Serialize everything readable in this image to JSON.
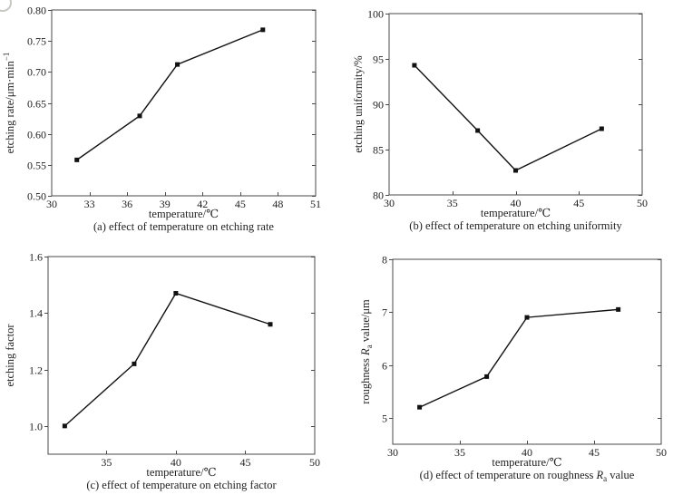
{
  "page": {
    "background": "#ffffff",
    "text_color": "#1f1f1f",
    "axis_color": "#4a4a4a",
    "line_color": "#111111",
    "marker_color": "#111111"
  },
  "chart_data": [
    {
      "id": "a",
      "type": "line",
      "caption": [
        {
          "t": "(a) effect of temperature on etching rate"
        }
      ],
      "xlabel": [
        {
          "t": "temperature/℃"
        }
      ],
      "ylabel": [
        {
          "t": "etching rate/μm·min"
        },
        {
          "t": "−1",
          "sup": true
        }
      ],
      "x": [
        32,
        37,
        40,
        46.8
      ],
      "y": [
        0.558,
        0.629,
        0.712,
        0.768
      ],
      "xlim": [
        30,
        51
      ],
      "ylim": [
        0.5,
        0.8
      ],
      "xticks": {
        "values": [
          30,
          33,
          36,
          39,
          42,
          45,
          48,
          51
        ],
        "labels": [
          "30",
          "33",
          "36",
          "39",
          "42",
          "45",
          "48",
          "51"
        ]
      },
      "yticks": {
        "values": [
          0.5,
          0.55,
          0.6,
          0.65,
          0.7,
          0.75,
          0.8
        ],
        "labels": [
          "0.50",
          "0.55",
          "0.60",
          "0.65",
          "0.70",
          "0.75",
          "0.80"
        ]
      },
      "marker": "square",
      "grid": false,
      "legend": null
    },
    {
      "id": "b",
      "type": "line",
      "caption": [
        {
          "t": "(b) effect of temperature on etching uniformity"
        }
      ],
      "xlabel": [
        {
          "t": "temperature/℃"
        }
      ],
      "ylabel": [
        {
          "t": "etching uniformity/%"
        }
      ],
      "x": [
        32,
        37,
        40,
        46.8
      ],
      "y": [
        94.3,
        87.1,
        82.7,
        87.3
      ],
      "xlim": [
        30,
        50
      ],
      "ylim": [
        80,
        100
      ],
      "xticks": {
        "values": [
          30,
          35,
          40,
          45,
          50
        ],
        "labels": [
          "30",
          "35",
          "40",
          "45",
          "50"
        ]
      },
      "yticks": {
        "values": [
          80,
          85,
          90,
          95,
          100
        ],
        "labels": [
          "80",
          "85",
          "90",
          "95",
          "100"
        ]
      },
      "marker": "square",
      "grid": false,
      "legend": null
    },
    {
      "id": "c",
      "type": "line",
      "caption": [
        {
          "t": "(c) effect of temperature on etching factor"
        }
      ],
      "xlabel": [
        {
          "t": "temperature/℃"
        }
      ],
      "ylabel": [
        {
          "t": "etching factor"
        }
      ],
      "x": [
        32,
        37,
        40,
        46.8
      ],
      "y": [
        1.0,
        1.22,
        1.47,
        1.36
      ],
      "xlim": [
        30.8,
        50
      ],
      "ylim": [
        0.9,
        1.6
      ],
      "xticks": {
        "values": [
          35,
          40,
          45,
          50
        ],
        "labels": [
          "35",
          "40",
          "45",
          "50"
        ]
      },
      "yticks": {
        "values": [
          1.0,
          1.2,
          1.4,
          1.6
        ],
        "labels": [
          "1.0",
          "1.2",
          "1.4",
          "1.6"
        ]
      },
      "marker": "square",
      "grid": false,
      "legend": null
    },
    {
      "id": "d",
      "type": "line",
      "caption": [
        {
          "t": "(d) effect of temperature on roughness "
        },
        {
          "t": "R",
          "i": true
        },
        {
          "t": "a",
          "sub": true
        },
        {
          "t": " value"
        }
      ],
      "xlabel": [
        {
          "t": "temperature/℃"
        }
      ],
      "ylabel": [
        {
          "t": "roughness "
        },
        {
          "t": "R",
          "i": true
        },
        {
          "t": "a",
          "sub": true
        },
        {
          "t": " value/μm"
        }
      ],
      "x": [
        32,
        37,
        40,
        46.8
      ],
      "y": [
        5.2,
        5.78,
        6.9,
        7.05
      ],
      "xlim": [
        30,
        50
      ],
      "ylim": [
        4.5,
        8
      ],
      "xticks": {
        "values": [
          30,
          35,
          40,
          45,
          50
        ],
        "labels": [
          "30",
          "35",
          "40",
          "45",
          "50"
        ]
      },
      "yticks": {
        "values": [
          5,
          6,
          7,
          8
        ],
        "labels": [
          "5",
          "6",
          "7",
          "8"
        ]
      },
      "marker": "square",
      "grid": false,
      "legend": null
    }
  ]
}
